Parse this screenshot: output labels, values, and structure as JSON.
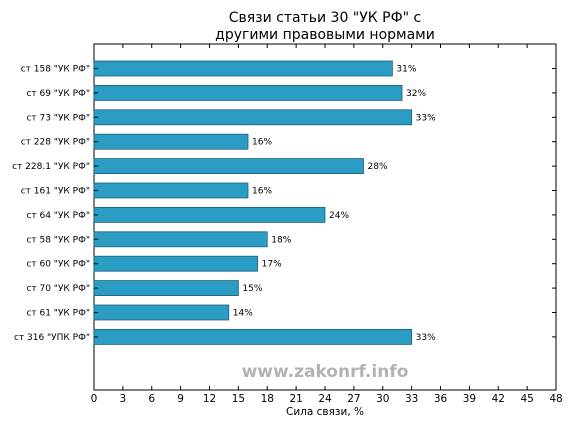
{
  "chart_data": {
    "type": "bar",
    "orientation": "horizontal",
    "title_lines": [
      "Связи статьи 30 \"УК РФ\" с",
      "другими правовыми нормами"
    ],
    "xlabel": "Сила связи, %",
    "ylabel": "",
    "xlim": [
      0,
      48
    ],
    "x_ticks": [
      0,
      3,
      6,
      9,
      12,
      15,
      18,
      21,
      24,
      27,
      30,
      33,
      36,
      39,
      42,
      45,
      48
    ],
    "grid": false,
    "bar_color": "#2b9cc4",
    "bar_edge_color": "#1c5f79",
    "value_suffix": "%",
    "categories": [
      "ст 158 \"УК РФ\"",
      "ст 69 \"УК РФ\"",
      "ст 73 \"УК РФ\"",
      "ст 228 \"УК РФ\"",
      "ст 228.1 \"УК РФ\"",
      "ст 161 \"УК РФ\"",
      "ст 64 \"УК РФ\"",
      "ст 58 \"УК РФ\"",
      "ст 60 \"УК РФ\"",
      "ст 70 \"УК РФ\"",
      "ст 61 \"УК РФ\"",
      "ст 316 \"УПК РФ\""
    ],
    "values": [
      31,
      32,
      33,
      16,
      28,
      16,
      24,
      18,
      17,
      15,
      14,
      33
    ],
    "data_labels": [
      "31%",
      "32%",
      "33%",
      "16%",
      "28%",
      "16%",
      "24%",
      "18%",
      "17%",
      "15%",
      "14%",
      "33%"
    ]
  },
  "watermark": "www.zakonrf.info"
}
